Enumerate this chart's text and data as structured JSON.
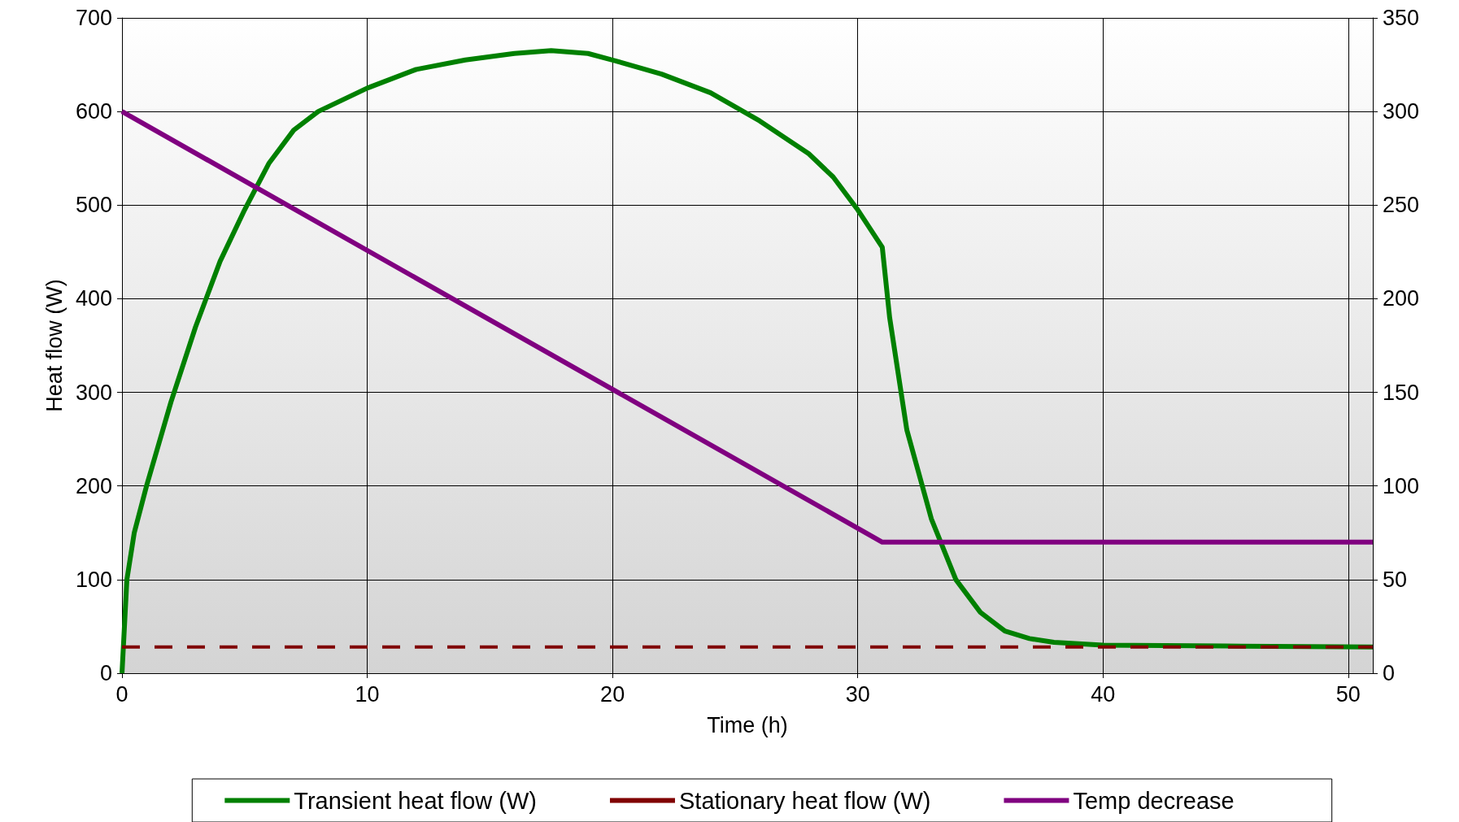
{
  "chart_data": {
    "type": "line",
    "xlabel": "Time (h)",
    "ylabel": "Heat flow (W)",
    "xlim": [
      0,
      51
    ],
    "xticks": [
      0,
      10,
      20,
      30,
      40,
      50
    ],
    "ylim": [
      0,
      700
    ],
    "yticks": [
      0,
      100,
      200,
      300,
      400,
      500,
      600,
      700
    ],
    "y2lim": [
      0,
      350
    ],
    "y2ticks": [
      0,
      50,
      100,
      150,
      200,
      250,
      300,
      350
    ],
    "grid": true,
    "legend": "bottom",
    "marker": "none",
    "series": [
      {
        "name": "Transient heat flow (W)",
        "color": "#008000",
        "line_style": "solid",
        "x": [
          0,
          0.2,
          0.5,
          1,
          2,
          3,
          4,
          5,
          6,
          7,
          8,
          10,
          12,
          14,
          16,
          17.5,
          19,
          20,
          22,
          24,
          26,
          28,
          29,
          30,
          31,
          31.3,
          32,
          33,
          34,
          35,
          36,
          37,
          38,
          40,
          45,
          51
        ],
        "values": [
          0,
          100,
          150,
          200,
          290,
          370,
          440,
          495,
          545,
          580,
          600,
          625,
          645,
          655,
          662,
          665,
          662,
          655,
          640,
          620,
          590,
          555,
          530,
          495,
          455,
          380,
          260,
          165,
          100,
          65,
          45,
          37,
          33,
          30,
          29,
          28
        ]
      },
      {
        "name": "Stationary heat flow (W)",
        "color": "#800000",
        "line_style": "dashed",
        "x": [
          0,
          51
        ],
        "values": [
          28,
          28
        ]
      },
      {
        "name": "Temp decrease",
        "color": "#800080",
        "line_style": "solid",
        "axis": "y2",
        "x": [
          0,
          31,
          51
        ],
        "values": [
          300,
          70,
          70
        ]
      }
    ]
  }
}
